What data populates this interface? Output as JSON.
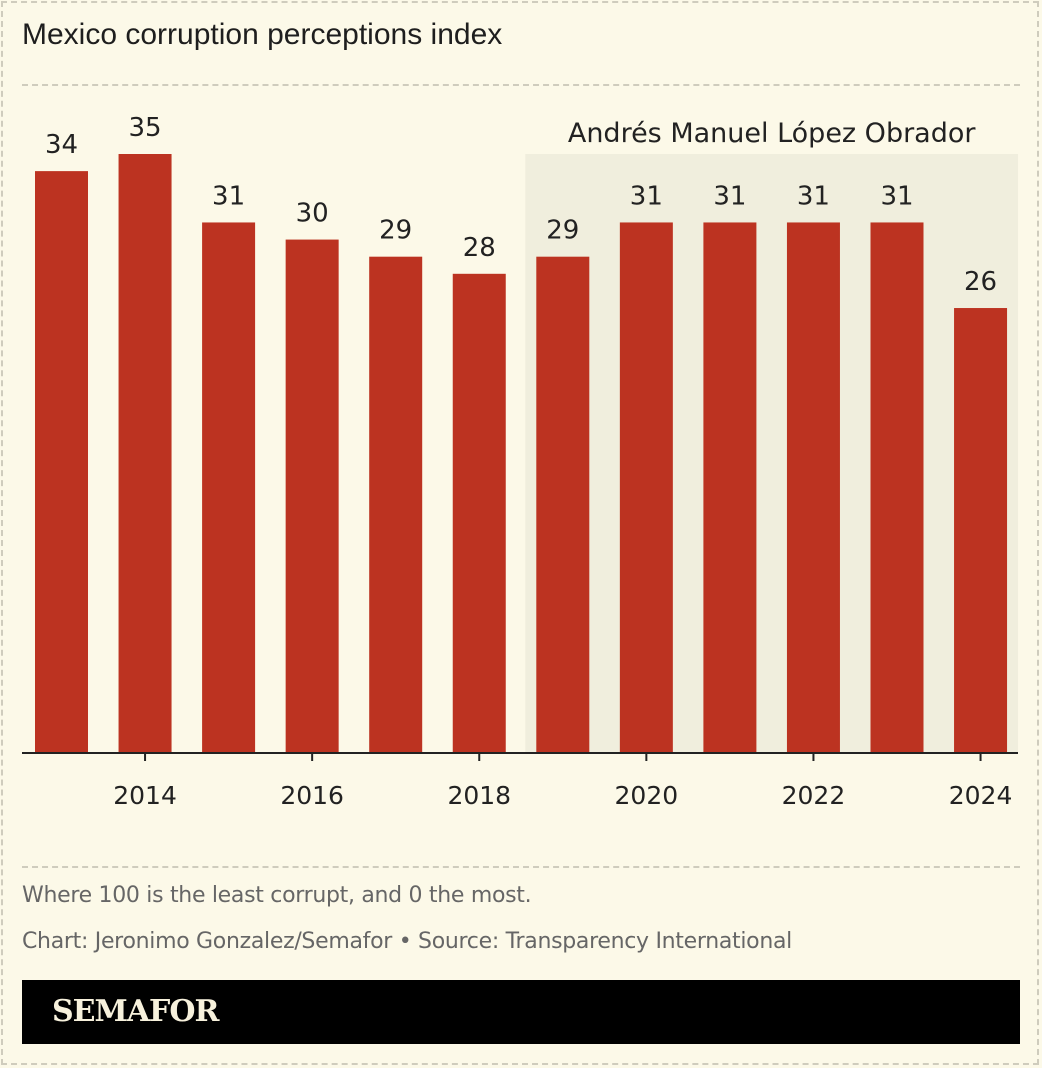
{
  "title": "Mexico corruption perceptions index",
  "chart_data": {
    "type": "bar",
    "categories": [
      "2013",
      "2014",
      "2015",
      "2016",
      "2017",
      "2018",
      "2019",
      "2020",
      "2021",
      "2022",
      "2023",
      "2024"
    ],
    "values": [
      34,
      35,
      31,
      30,
      29,
      28,
      29,
      31,
      31,
      31,
      31,
      26
    ],
    "x_tick_labels": [
      "2014",
      "2016",
      "2018",
      "2020",
      "2022",
      "2024"
    ],
    "ylim": [
      0,
      35
    ],
    "grid": false,
    "bar_color": "#bc3321",
    "annotation": {
      "label": "Andrés Manuel López Obrador",
      "from": "2019",
      "to": "2024",
      "shade_color": "#f0eedd"
    }
  },
  "footnote": "Where 100 is the least corrupt, and 0 the most.",
  "credit": "Chart: Jeronimo Gonzalez/Semafor • Source: Transparency International",
  "logo": "SEMAFOR"
}
